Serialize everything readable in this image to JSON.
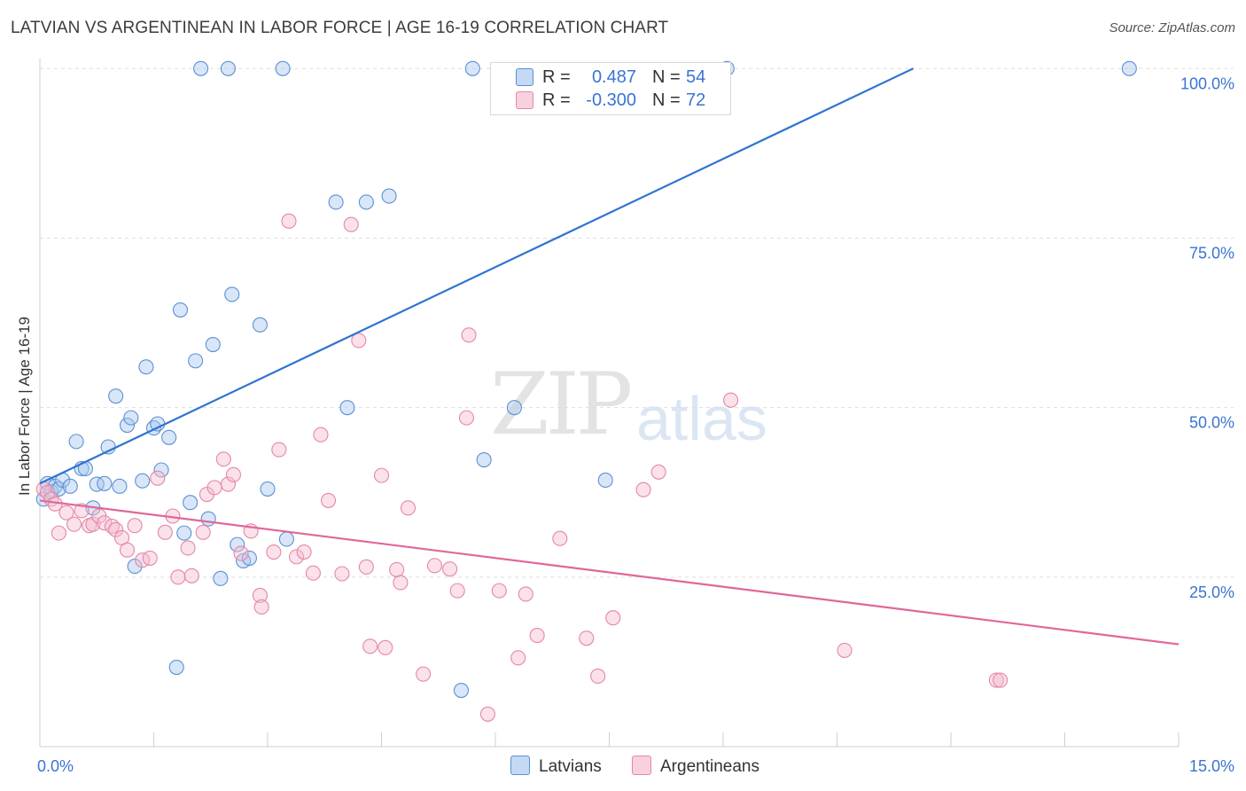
{
  "title": "LATVIAN VS ARGENTINEAN IN LABOR FORCE | AGE 16-19 CORRELATION CHART",
  "source": "Source: ZipAtlas.com",
  "watermark": {
    "zip": "ZIP",
    "atlas": "atlas"
  },
  "legend": {
    "r_label": "R =",
    "n_label": "N =",
    "latvians": {
      "r": "0.487",
      "n": "54"
    },
    "argentineans": {
      "r": "-0.300",
      "n": "72"
    }
  },
  "colors": {
    "latvian_fill": "#a8c8ee",
    "latvian_stroke": "#5b90d6",
    "latvian_line": "#2f74d0",
    "argentinean_fill": "#f5bcd0",
    "argentinean_stroke": "#e487a8",
    "argentinean_line": "#e0679a",
    "tick_text": "#3a74d0",
    "grid": "#dedede"
  },
  "chart_data": {
    "type": "scatter",
    "title": "LATVIAN VS ARGENTINEAN IN LABOR FORCE | AGE 16-19 CORRELATION CHART",
    "xlabel": "",
    "ylabel": "In Labor Force | Age 16-19",
    "xlim": [
      0,
      15
    ],
    "ylim": [
      0,
      102
    ],
    "x_tick_labels": [
      {
        "value": 0,
        "label": "0.0%"
      },
      {
        "value": 15,
        "label": "15.0%"
      }
    ],
    "y_tick_labels": [
      {
        "value": 25,
        "label": "25.0%"
      },
      {
        "value": 50,
        "label": "50.0%"
      },
      {
        "value": 75,
        "label": "75.0%"
      },
      {
        "value": 100,
        "label": "100.0%"
      }
    ],
    "series": [
      {
        "name": "Latvians",
        "r": 0.487,
        "n": 54,
        "trend": [
          [
            0,
            38.8
          ],
          [
            15,
            118.6
          ]
        ],
        "points": [
          [
            0.05,
            36.5
          ],
          [
            0.1,
            38.8
          ],
          [
            0.15,
            37.6
          ],
          [
            0.2,
            38.4
          ],
          [
            0.25,
            38.0
          ],
          [
            0.3,
            39.3
          ],
          [
            0.4,
            38.4
          ],
          [
            0.48,
            45.0
          ],
          [
            0.55,
            41.0
          ],
          [
            0.6,
            41.0
          ],
          [
            0.7,
            35.2
          ],
          [
            0.75,
            38.7
          ],
          [
            0.85,
            38.8
          ],
          [
            0.9,
            44.2
          ],
          [
            1.0,
            51.7
          ],
          [
            1.05,
            38.4
          ],
          [
            1.15,
            47.4
          ],
          [
            1.2,
            48.5
          ],
          [
            1.25,
            26.6
          ],
          [
            1.35,
            39.2
          ],
          [
            1.4,
            56.0
          ],
          [
            1.5,
            47.0
          ],
          [
            1.55,
            47.6
          ],
          [
            1.6,
            40.8
          ],
          [
            1.7,
            45.6
          ],
          [
            1.8,
            11.7
          ],
          [
            1.85,
            64.4
          ],
          [
            1.9,
            31.5
          ],
          [
            1.98,
            36.0
          ],
          [
            2.05,
            56.9
          ],
          [
            2.12,
            100
          ],
          [
            2.22,
            33.6
          ],
          [
            2.28,
            59.3
          ],
          [
            2.38,
            24.8
          ],
          [
            2.48,
            100
          ],
          [
            2.53,
            66.7
          ],
          [
            2.6,
            29.8
          ],
          [
            2.68,
            27.4
          ],
          [
            2.76,
            27.8
          ],
          [
            2.9,
            62.2
          ],
          [
            3.0,
            38.0
          ],
          [
            3.2,
            100
          ],
          [
            3.25,
            30.6
          ],
          [
            3.9,
            80.3
          ],
          [
            4.05,
            50.0
          ],
          [
            4.3,
            80.3
          ],
          [
            4.6,
            81.2
          ],
          [
            5.55,
            8.3
          ],
          [
            5.7,
            100
          ],
          [
            5.85,
            42.3
          ],
          [
            6.25,
            50.0
          ],
          [
            7.45,
            39.3
          ],
          [
            9.05,
            100
          ],
          [
            14.35,
            100
          ]
        ]
      },
      {
        "name": "Argentineans",
        "r": -0.3,
        "n": 72,
        "trend": [
          [
            0,
            36.3
          ],
          [
            15,
            15.1
          ]
        ],
        "points": [
          [
            0.05,
            38.0
          ],
          [
            0.1,
            37.5
          ],
          [
            0.15,
            36.5
          ],
          [
            0.2,
            35.8
          ],
          [
            0.25,
            31.5
          ],
          [
            0.35,
            34.5
          ],
          [
            0.45,
            32.8
          ],
          [
            0.55,
            34.8
          ],
          [
            0.65,
            32.6
          ],
          [
            0.7,
            32.8
          ],
          [
            0.78,
            34.0
          ],
          [
            0.85,
            33.0
          ],
          [
            0.95,
            32.5
          ],
          [
            1.0,
            32.0
          ],
          [
            1.08,
            30.8
          ],
          [
            1.15,
            29.0
          ],
          [
            1.25,
            32.6
          ],
          [
            1.35,
            27.5
          ],
          [
            1.45,
            27.8
          ],
          [
            1.55,
            39.6
          ],
          [
            1.65,
            31.6
          ],
          [
            1.75,
            34.0
          ],
          [
            1.82,
            25.0
          ],
          [
            1.95,
            29.3
          ],
          [
            2.0,
            25.2
          ],
          [
            2.15,
            31.6
          ],
          [
            2.2,
            37.2
          ],
          [
            2.3,
            38.2
          ],
          [
            2.42,
            42.4
          ],
          [
            2.48,
            38.7
          ],
          [
            2.55,
            40.1
          ],
          [
            2.65,
            28.5
          ],
          [
            2.78,
            31.8
          ],
          [
            2.9,
            22.3
          ],
          [
            2.92,
            20.6
          ],
          [
            3.08,
            28.7
          ],
          [
            3.15,
            43.8
          ],
          [
            3.28,
            77.5
          ],
          [
            3.38,
            28.0
          ],
          [
            3.48,
            28.7
          ],
          [
            3.6,
            25.6
          ],
          [
            3.7,
            46.0
          ],
          [
            3.8,
            36.3
          ],
          [
            3.98,
            25.5
          ],
          [
            4.1,
            77.0
          ],
          [
            4.2,
            59.9
          ],
          [
            4.3,
            26.5
          ],
          [
            4.35,
            14.8
          ],
          [
            4.5,
            40.0
          ],
          [
            4.55,
            14.6
          ],
          [
            4.7,
            26.1
          ],
          [
            4.75,
            24.2
          ],
          [
            4.85,
            35.2
          ],
          [
            5.05,
            10.7
          ],
          [
            5.2,
            26.7
          ],
          [
            5.4,
            26.2
          ],
          [
            5.5,
            23.0
          ],
          [
            5.62,
            48.5
          ],
          [
            5.65,
            60.7
          ],
          [
            5.9,
            4.8
          ],
          [
            6.05,
            23.0
          ],
          [
            6.3,
            13.1
          ],
          [
            6.4,
            22.5
          ],
          [
            6.55,
            16.4
          ],
          [
            6.85,
            30.7
          ],
          [
            7.2,
            16.0
          ],
          [
            7.35,
            10.4
          ],
          [
            7.55,
            19.0
          ],
          [
            7.95,
            37.9
          ],
          [
            8.15,
            40.5
          ],
          [
            9.1,
            51.1
          ],
          [
            10.6,
            14.2
          ],
          [
            12.6,
            9.8
          ],
          [
            12.65,
            9.8
          ]
        ]
      }
    ]
  },
  "bottom_legend": {
    "latvians": "Latvians",
    "argentineans": "Argentineans"
  }
}
